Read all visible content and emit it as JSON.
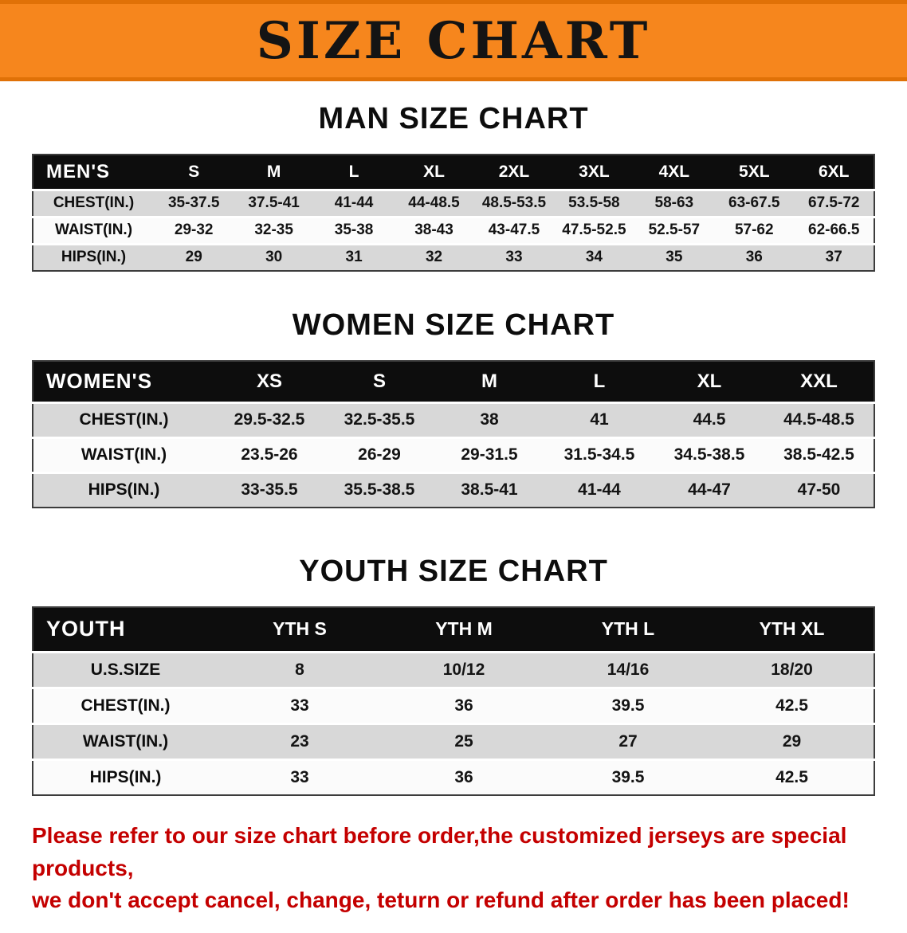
{
  "banner": {
    "title": "SIZE CHART",
    "bg_color": "#f6861d"
  },
  "sections": [
    {
      "key": "men",
      "heading": "MAN SIZE CHART",
      "table": {
        "header": [
          "MEN'S",
          "S",
          "M",
          "L",
          "XL",
          "2XL",
          "3XL",
          "4XL",
          "5XL",
          "6XL"
        ],
        "rows": [
          [
            "CHEST(IN.)",
            "35-37.5",
            "37.5-41",
            "41-44",
            "44-48.5",
            "48.5-53.5",
            "53.5-58",
            "58-63",
            "63-67.5",
            "67.5-72"
          ],
          [
            "WAIST(IN.)",
            "29-32",
            "32-35",
            "35-38",
            "38-43",
            "43-47.5",
            "47.5-52.5",
            "52.5-57",
            "57-62",
            "62-66.5"
          ],
          [
            "HIPS(IN.)",
            "29",
            "30",
            "31",
            "32",
            "33",
            "34",
            "35",
            "36",
            "37"
          ]
        ]
      }
    },
    {
      "key": "women",
      "heading": "WOMEN SIZE CHART",
      "table": {
        "header": [
          "WOMEN'S",
          "XS",
          "S",
          "M",
          "L",
          "XL",
          "XXL"
        ],
        "rows": [
          [
            "CHEST(IN.)",
            "29.5-32.5",
            "32.5-35.5",
            "38",
            "41",
            "44.5",
            "44.5-48.5"
          ],
          [
            "WAIST(IN.)",
            "23.5-26",
            "26-29",
            "29-31.5",
            "31.5-34.5",
            "34.5-38.5",
            "38.5-42.5"
          ],
          [
            "HIPS(IN.)",
            "33-35.5",
            "35.5-38.5",
            "38.5-41",
            "41-44",
            "44-47",
            "47-50"
          ]
        ]
      }
    },
    {
      "key": "youth",
      "heading": "YOUTH SIZE CHART",
      "table": {
        "header": [
          "YOUTH",
          "YTH S",
          "YTH M",
          "YTH L",
          "YTH XL"
        ],
        "rows": [
          [
            "U.S.SIZE",
            "8",
            "10/12",
            "14/16",
            "18/20"
          ],
          [
            "CHEST(IN.)",
            "33",
            "36",
            "39.5",
            "42.5"
          ],
          [
            "WAIST(IN.)",
            "23",
            "25",
            "27",
            "29"
          ],
          [
            "HIPS(IN.)",
            "33",
            "36",
            "39.5",
            "42.5"
          ]
        ]
      }
    }
  ],
  "footer": {
    "color": "#c40000",
    "lines": [
      "Please refer to our size chart before order,the customized jerseys are special products,",
      "we don't accept cancel, change, teturn or refund after order has been placed!"
    ]
  }
}
